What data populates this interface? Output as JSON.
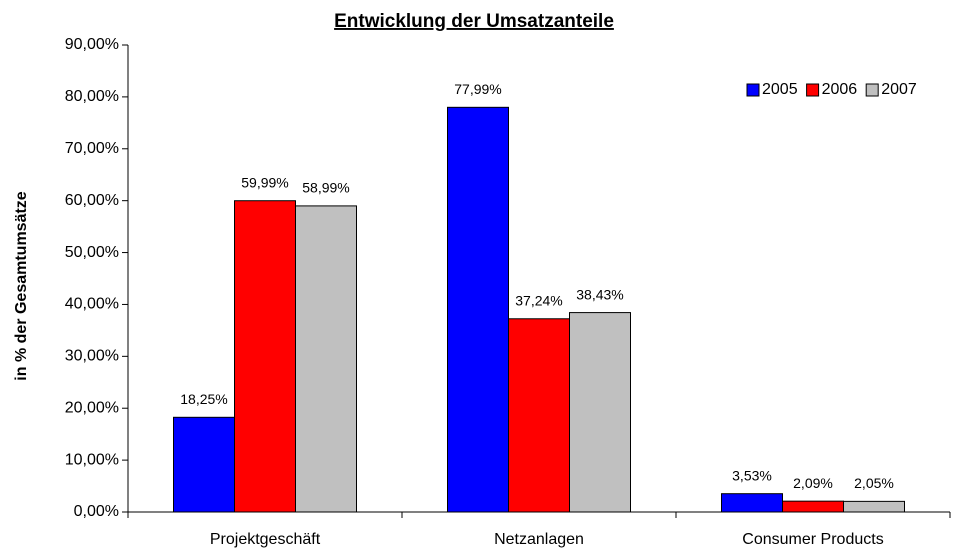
{
  "chart_data": {
    "type": "bar",
    "title": "Entwicklung der Umsatzanteile",
    "y_label": "in % der Gesamtumsätze",
    "categories": [
      "Projektgeschäft",
      "Netzanlagen",
      "Consumer Products"
    ],
    "series": [
      {
        "name": "2005",
        "color": "#0000ff",
        "values": [
          18.25,
          77.99,
          3.53
        ],
        "value_labels": [
          "18,25%",
          "77,99%",
          "3,53%"
        ]
      },
      {
        "name": "2006",
        "color": "#ff0000",
        "values": [
          59.99,
          37.24,
          2.09
        ],
        "value_labels": [
          "59,99%",
          "37,24%",
          "2,09%"
        ]
      },
      {
        "name": "2007",
        "color": "#c0c0c0",
        "values": [
          58.99,
          38.43,
          2.05
        ],
        "value_labels": [
          "58,99%",
          "38,43%",
          "2,05%"
        ]
      }
    ],
    "ylim": [
      0,
      90
    ],
    "yticks": [
      {
        "value": 0,
        "label": "0,00%"
      },
      {
        "value": 10,
        "label": "10,00%"
      },
      {
        "value": 20,
        "label": "20,00%"
      },
      {
        "value": 30,
        "label": "30,00%"
      },
      {
        "value": 40,
        "label": "40,00%"
      },
      {
        "value": 50,
        "label": "50,00%"
      },
      {
        "value": 60,
        "label": "60,00%"
      },
      {
        "value": 70,
        "label": "70,00%"
      },
      {
        "value": 80,
        "label": "80,00%"
      },
      {
        "value": 90,
        "label": "90,00%"
      }
    ],
    "grid": false,
    "legend": "top-right"
  }
}
